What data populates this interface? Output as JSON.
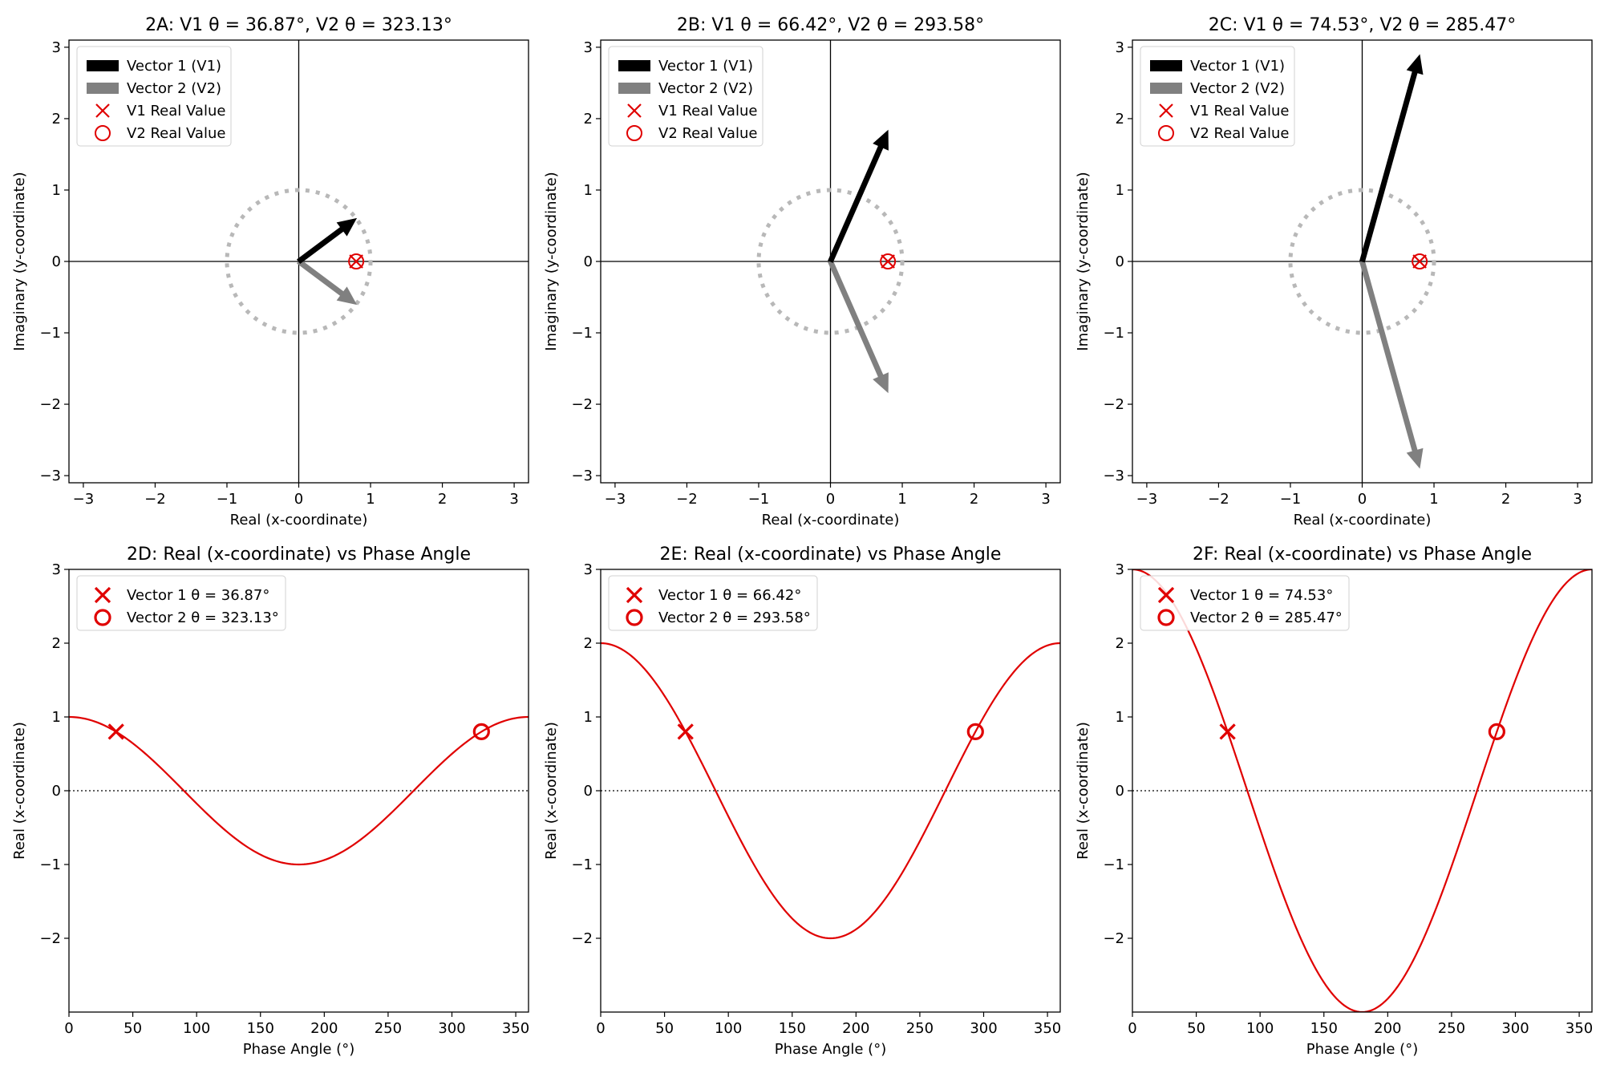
{
  "colors": {
    "v1": "#000000",
    "v2": "#808080",
    "red": "#e00000",
    "circle": "#b8b8b8",
    "axis": "#000000"
  },
  "chart_data": [
    {
      "type": "scatter",
      "subtype": "phasor",
      "title": "2A:  V1 θ = 36.87°, V2 θ = 323.13°",
      "xlabel": "Real (x-coordinate)",
      "ylabel": "Imaginary (y-coordinate)",
      "xlim": [
        -3.2,
        3.2
      ],
      "ylim": [
        -3.1,
        3.1
      ],
      "xticks": [
        -3,
        -2,
        -1,
        0,
        1,
        2,
        3
      ],
      "yticks": [
        -3,
        -2,
        -1,
        0,
        1,
        2,
        3
      ],
      "unit_circle_radius": 1,
      "vectors": [
        {
          "name": "Vector 1 (V1)",
          "x": 0.8,
          "y": 0.6
        },
        {
          "name": "Vector 2 (V2)",
          "x": 0.8,
          "y": -0.6
        }
      ],
      "real_points": [
        {
          "name": "V1 Real Value",
          "x": 0.8,
          "y": 0,
          "marker": "x"
        },
        {
          "name": "V2 Real Value",
          "x": 0.8,
          "y": 0,
          "marker": "o"
        }
      ],
      "legend": [
        "Vector 1 (V1)",
        "Vector 2 (V2)",
        "V1 Real Value",
        "V2 Real Value"
      ],
      "legend_position": "top-left"
    },
    {
      "type": "scatter",
      "subtype": "phasor",
      "title": "2B:  V1 θ = 66.42°, V2 θ = 293.58°",
      "xlabel": "Real (x-coordinate)",
      "ylabel": "Imaginary (y-coordinate)",
      "xlim": [
        -3.2,
        3.2
      ],
      "ylim": [
        -3.1,
        3.1
      ],
      "xticks": [
        -3,
        -2,
        -1,
        0,
        1,
        2,
        3
      ],
      "yticks": [
        -3,
        -2,
        -1,
        0,
        1,
        2,
        3
      ],
      "unit_circle_radius": 1,
      "vectors": [
        {
          "name": "Vector 1 (V1)",
          "x": 0.8,
          "y": 1.833
        },
        {
          "name": "Vector 2 (V2)",
          "x": 0.8,
          "y": -1.833
        }
      ],
      "real_points": [
        {
          "name": "V1 Real Value",
          "x": 0.8,
          "y": 0,
          "marker": "x"
        },
        {
          "name": "V2 Real Value",
          "x": 0.8,
          "y": 0,
          "marker": "o"
        }
      ],
      "legend": [
        "Vector 1 (V1)",
        "Vector 2 (V2)",
        "V1 Real Value",
        "V2 Real Value"
      ],
      "legend_position": "top-left"
    },
    {
      "type": "scatter",
      "subtype": "phasor",
      "title": "2C:  V1 θ = 74.53°, V2 θ = 285.47°",
      "xlabel": "Real (x-coordinate)",
      "ylabel": "Imaginary (y-coordinate)",
      "xlim": [
        -3.2,
        3.2
      ],
      "ylim": [
        -3.1,
        3.1
      ],
      "xticks": [
        -3,
        -2,
        -1,
        0,
        1,
        2,
        3
      ],
      "yticks": [
        -3,
        -2,
        -1,
        0,
        1,
        2,
        3
      ],
      "unit_circle_radius": 1,
      "vectors": [
        {
          "name": "Vector 1 (V1)",
          "x": 0.8,
          "y": 2.891
        },
        {
          "name": "Vector 2 (V2)",
          "x": 0.8,
          "y": -2.891
        }
      ],
      "real_points": [
        {
          "name": "V1 Real Value",
          "x": 0.8,
          "y": 0,
          "marker": "x"
        },
        {
          "name": "V2 Real Value",
          "x": 0.8,
          "y": 0,
          "marker": "o"
        }
      ],
      "legend": [
        "Vector 1 (V1)",
        "Vector 2 (V2)",
        "V1 Real Value",
        "V2 Real Value"
      ],
      "legend_position": "top-left"
    },
    {
      "type": "line",
      "title": "2D: Real (x-coordinate) vs Phase Angle",
      "xlabel": "Phase Angle (°)",
      "ylabel": "Real (x-coordinate)",
      "xlim": [
        0,
        360
      ],
      "ylim": [
        -3,
        3
      ],
      "xticks": [
        0,
        50,
        100,
        150,
        200,
        250,
        300,
        350
      ],
      "yticks": [
        -2,
        -1,
        0,
        1,
        2,
        3
      ],
      "curve": {
        "function": "amplitude*cos(theta)",
        "amplitude": 1
      },
      "points": [
        {
          "name": "Vector 1 θ = 36.87°",
          "x": 36.87,
          "y": 0.8,
          "marker": "x"
        },
        {
          "name": "Vector 2 θ = 323.13°",
          "x": 323.13,
          "y": 0.8,
          "marker": "o"
        }
      ],
      "legend": [
        "Vector 1 θ = 36.87°",
        "Vector 2 θ = 323.13°"
      ],
      "legend_position": "top-left"
    },
    {
      "type": "line",
      "title": "2E: Real (x-coordinate) vs Phase Angle",
      "xlabel": "Phase Angle (°)",
      "ylabel": "Real (x-coordinate)",
      "xlim": [
        0,
        360
      ],
      "ylim": [
        -3,
        3
      ],
      "xticks": [
        0,
        50,
        100,
        150,
        200,
        250,
        300,
        350
      ],
      "yticks": [
        -2,
        -1,
        0,
        1,
        2,
        3
      ],
      "curve": {
        "function": "amplitude*cos(theta)",
        "amplitude": 2
      },
      "points": [
        {
          "name": "Vector 1 θ = 66.42°",
          "x": 66.42,
          "y": 0.8,
          "marker": "x"
        },
        {
          "name": "Vector 2 θ = 293.58°",
          "x": 293.58,
          "y": 0.8,
          "marker": "o"
        }
      ],
      "legend": [
        "Vector 1 θ = 66.42°",
        "Vector 2 θ = 293.58°"
      ],
      "legend_position": "top-left"
    },
    {
      "type": "line",
      "title": "2F: Real (x-coordinate) vs Phase Angle",
      "xlabel": "Phase Angle (°)",
      "ylabel": "Real (x-coordinate)",
      "xlim": [
        0,
        360
      ],
      "ylim": [
        -3,
        3
      ],
      "xticks": [
        0,
        50,
        100,
        150,
        200,
        250,
        300,
        350
      ],
      "yticks": [
        -2,
        -1,
        0,
        1,
        2,
        3
      ],
      "curve": {
        "function": "amplitude*cos(theta)",
        "amplitude": 3
      },
      "points": [
        {
          "name": "Vector 1 θ = 74.53°",
          "x": 74.53,
          "y": 0.8,
          "marker": "x"
        },
        {
          "name": "Vector 2 θ = 285.47°",
          "x": 285.47,
          "y": 0.8,
          "marker": "o"
        }
      ],
      "legend": [
        "Vector 1 θ = 74.53°",
        "Vector 2 θ = 285.47°"
      ],
      "legend_position": "top-left"
    }
  ]
}
